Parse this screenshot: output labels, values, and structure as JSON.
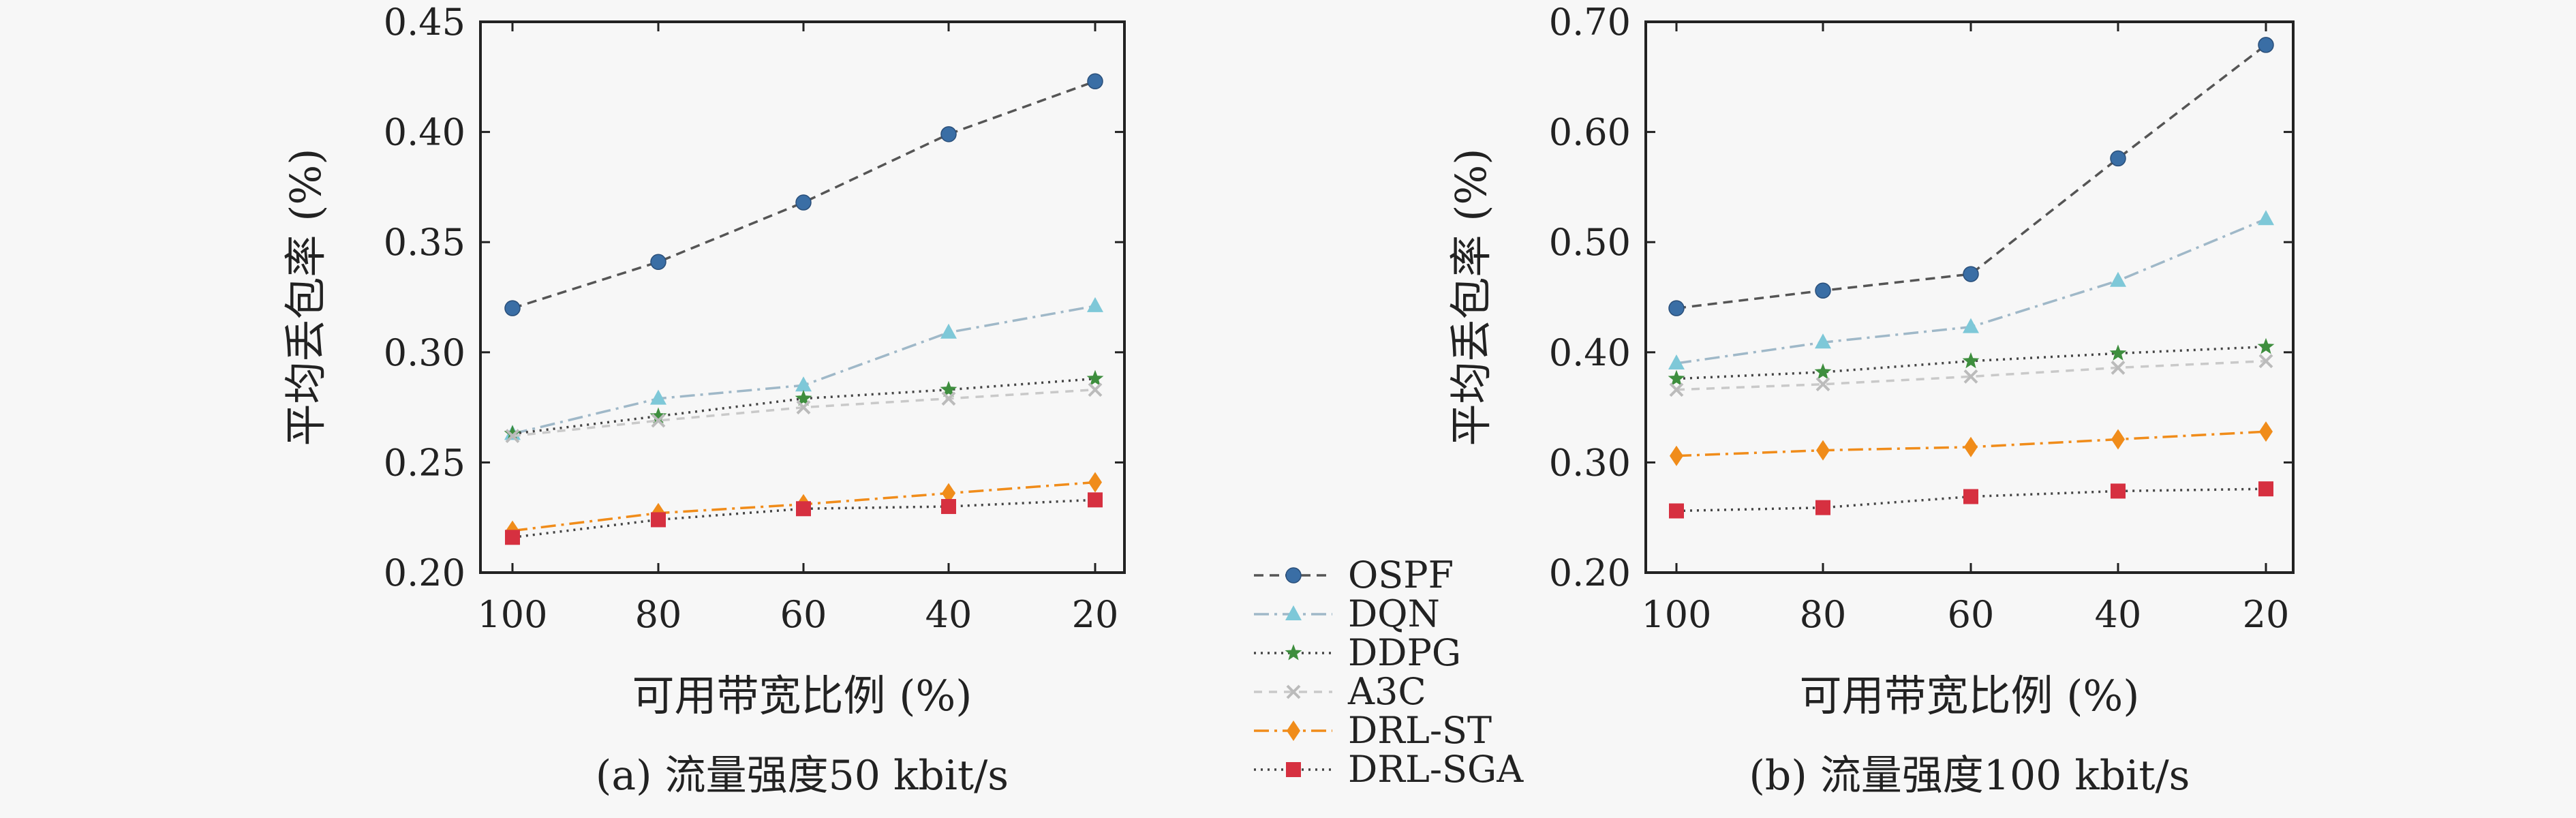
{
  "chart_data": [
    {
      "type": "line",
      "caption": "(a) 流量强度50 kbit/s",
      "xlabel": "可用带宽比例 (%)",
      "ylabel": "平均丢包率 (%)",
      "categories": [
        "100",
        "80",
        "60",
        "40",
        "20"
      ],
      "ylim": [
        0.2,
        0.45
      ],
      "yticks": [
        "0.20",
        "0.25",
        "0.30",
        "0.35",
        "0.40",
        "0.45"
      ],
      "series": [
        {
          "name": "OSPF",
          "values": [
            0.32,
            0.341,
            0.368,
            0.399,
            0.423
          ]
        },
        {
          "name": "DQN",
          "values": [
            0.263,
            0.279,
            0.285,
            0.309,
            0.321
          ]
        },
        {
          "name": "DDPG",
          "values": [
            0.263,
            0.271,
            0.279,
            0.283,
            0.288
          ]
        },
        {
          "name": "A3C",
          "values": [
            0.262,
            0.269,
            0.275,
            0.279,
            0.283
          ]
        },
        {
          "name": "DRL-ST",
          "values": [
            0.219,
            0.227,
            0.231,
            0.236,
            0.241
          ]
        },
        {
          "name": "DRL-SGA",
          "values": [
            0.216,
            0.224,
            0.229,
            0.23,
            0.233
          ]
        }
      ]
    },
    {
      "type": "line",
      "caption": "(b) 流量强度100 kbit/s",
      "xlabel": "可用带宽比例 (%)",
      "ylabel": "平均丢包率 (%)",
      "categories": [
        "100",
        "80",
        "60",
        "40",
        "20"
      ],
      "ylim": [
        0.2,
        0.7
      ],
      "yticks": [
        "0.20",
        "0.30",
        "0.40",
        "0.50",
        "0.60",
        "0.70"
      ],
      "series": [
        {
          "name": "OSPF",
          "values": [
            0.44,
            0.456,
            0.471,
            0.576,
            0.679
          ]
        },
        {
          "name": "DQN",
          "values": [
            0.39,
            0.409,
            0.423,
            0.465,
            0.521
          ]
        },
        {
          "name": "DDPG",
          "values": [
            0.376,
            0.382,
            0.392,
            0.399,
            0.405
          ]
        },
        {
          "name": "A3C",
          "values": [
            0.366,
            0.371,
            0.378,
            0.386,
            0.392
          ]
        },
        {
          "name": "DRL-ST",
          "values": [
            0.306,
            0.311,
            0.314,
            0.321,
            0.328
          ]
        },
        {
          "name": "DRL-SGA",
          "values": [
            0.256,
            0.259,
            0.269,
            0.274,
            0.276
          ]
        }
      ]
    }
  ],
  "styles": [
    {
      "color": "#3a6ea5",
      "line": "#555555",
      "dash": "14,9",
      "marker": "circle"
    },
    {
      "color": "#7ec8d8",
      "line": "#9fb8c8",
      "dash": "22,8,4,8",
      "marker": "triangle"
    },
    {
      "color": "#3e8e3e",
      "line": "#444444",
      "dash": "3,7",
      "marker": "star"
    },
    {
      "color": "#bbbbbb",
      "line": "#c9c9c9",
      "dash": "12,10",
      "marker": "x"
    },
    {
      "color": "#f08c1a",
      "line": "#f08c1a",
      "dash": "22,8,4,8",
      "marker": "diamond"
    },
    {
      "color": "#d63040",
      "line": "#444444",
      "dash": "3,7",
      "marker": "square"
    }
  ]
}
